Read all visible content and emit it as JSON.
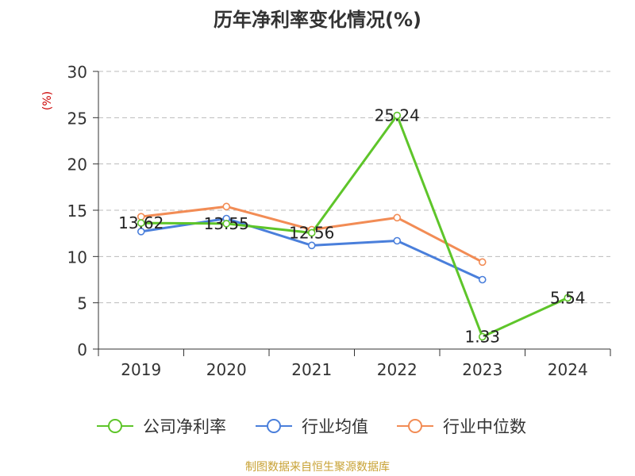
{
  "chart_data": {
    "type": "line",
    "title": "历年净利率变化情况(%)",
    "ylabel": "(%)",
    "xlabel": "",
    "categories": [
      "2019",
      "2020",
      "2021",
      "2022",
      "2023",
      "2024"
    ],
    "ylim": [
      0,
      30
    ],
    "yticks": [
      0,
      5,
      10,
      15,
      20,
      25,
      30
    ],
    "grid": true,
    "legend_position": "bottom",
    "series": [
      {
        "name": "公司净利率",
        "color": "#5ec52a",
        "values": [
          13.62,
          13.55,
          12.56,
          25.24,
          1.33,
          5.54
        ],
        "show_labels": true,
        "labels": [
          "13.62",
          "13.55",
          "12.56",
          "25.24",
          "1.33",
          "5.54"
        ]
      },
      {
        "name": "行业均值",
        "color": "#4a7fdb",
        "values": [
          12.7,
          14.1,
          11.2,
          11.7,
          7.5,
          null
        ],
        "show_labels": false
      },
      {
        "name": "行业中位数",
        "color": "#f28c55",
        "values": [
          14.3,
          15.4,
          12.9,
          14.2,
          9.4,
          null
        ],
        "show_labels": false
      }
    ]
  },
  "footer": {
    "source": "制图数据来自恒生聚源数据库"
  }
}
